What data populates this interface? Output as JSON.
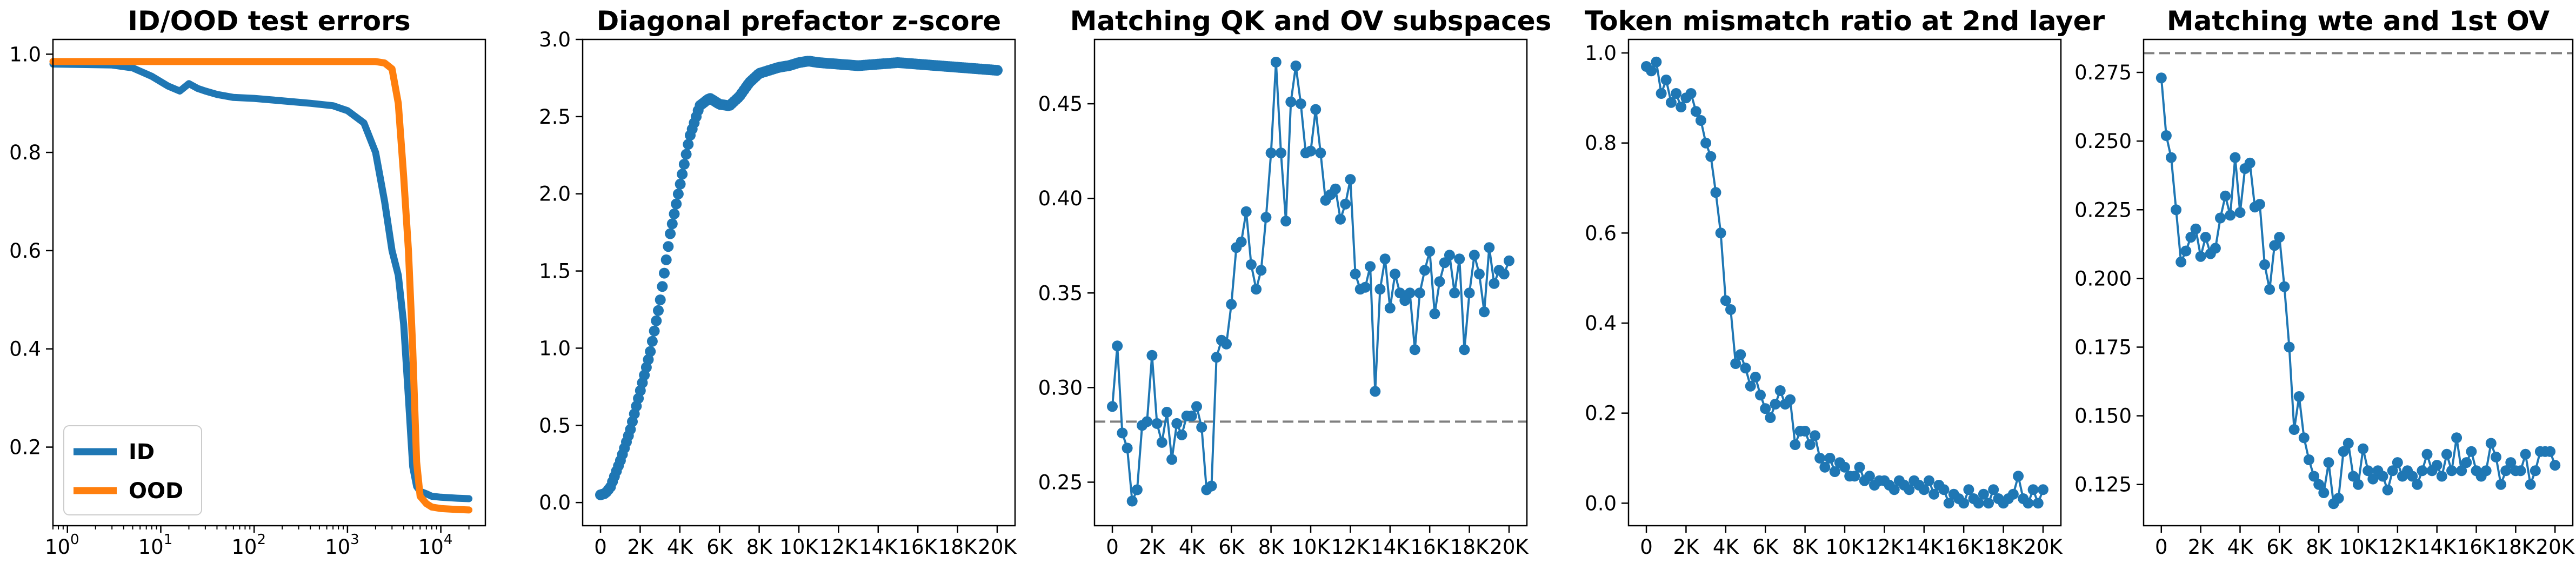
{
  "colors": {
    "blue": "#1f77b4",
    "orange": "#ff7f0e",
    "ref": "#7f7f7f"
  },
  "chart_data": [
    {
      "type": "line",
      "title": "ID/OOD test errors",
      "xscale": "log",
      "xlim": [
        0.7,
        30000
      ],
      "ylim": [
        0.04,
        1.03
      ],
      "xticks": [
        1,
        10,
        100,
        1000,
        10000
      ],
      "xtick_labels": [
        "10",
        "10",
        "10",
        "10",
        "10"
      ],
      "xtick_exponents": [
        "0",
        "1",
        "2",
        "3",
        "4"
      ],
      "yticks": [
        0.2,
        0.4,
        0.6,
        0.8,
        1.0
      ],
      "ytick_labels": [
        "0.2",
        "0.4",
        "0.6",
        "0.8",
        "1.0"
      ],
      "legend": "lower-left",
      "series": [
        {
          "name": "ID",
          "color": "#1f77b4",
          "x": [
            0.7,
            3,
            5,
            8,
            12,
            16,
            20,
            25,
            30,
            40,
            60,
            100,
            200,
            400,
            700,
            1000,
            1500,
            2000,
            2500,
            3000,
            3500,
            4000,
            4500,
            5000,
            5500,
            6000,
            7000,
            8000,
            10000,
            15000,
            20000
          ],
          "y": [
            0.98,
            0.978,
            0.972,
            0.955,
            0.935,
            0.925,
            0.94,
            0.93,
            0.925,
            0.918,
            0.912,
            0.91,
            0.905,
            0.9,
            0.895,
            0.885,
            0.86,
            0.8,
            0.7,
            0.6,
            0.55,
            0.45,
            0.3,
            0.16,
            0.12,
            0.11,
            0.105,
            0.1,
            0.098,
            0.096,
            0.095
          ]
        },
        {
          "name": "OOD",
          "color": "#ff7f0e",
          "x": [
            0.7,
            10,
            100,
            1000,
            2000,
            2500,
            3000,
            3500,
            4000,
            4500,
            5000,
            5500,
            6000,
            7000,
            8000,
            10000,
            15000,
            20000
          ],
          "y": [
            0.985,
            0.985,
            0.985,
            0.985,
            0.985,
            0.982,
            0.97,
            0.9,
            0.75,
            0.6,
            0.4,
            0.17,
            0.1,
            0.085,
            0.078,
            0.075,
            0.073,
            0.072
          ]
        }
      ]
    },
    {
      "type": "scatter",
      "title": "Diagonal prefactor z-score",
      "xlim": [
        -900,
        20900
      ],
      "ylim": [
        -0.15,
        3.0
      ],
      "xticks": [
        0,
        2000,
        4000,
        6000,
        8000,
        10000,
        12000,
        14000,
        16000,
        18000,
        20000
      ],
      "xtick_labels": [
        "0",
        "2K",
        "4K",
        "6K",
        "8K",
        "10K",
        "12K",
        "14K",
        "16K",
        "18K",
        "20K"
      ],
      "yticks": [
        0.0,
        0.5,
        1.0,
        1.5,
        2.0,
        2.5,
        3.0
      ],
      "ytick_labels": [
        "0.0",
        "0.5",
        "1.0",
        "1.5",
        "2.0",
        "2.5",
        "3.0"
      ],
      "series": [
        {
          "color": "#1f77b4",
          "x_anchor": [
            0,
            250,
            500,
            1000,
            1500,
            2000,
            2500,
            3000,
            3500,
            4000,
            4500,
            5000,
            5500,
            6000,
            6500,
            7000,
            7500,
            8000,
            8500,
            9000,
            9500,
            10000,
            10500,
            11000,
            12000,
            13000,
            14000,
            15000,
            16000,
            17000,
            18000,
            19000,
            20000
          ],
          "y_anchor": [
            0.05,
            0.06,
            0.1,
            0.27,
            0.47,
            0.72,
            0.97,
            1.3,
            1.73,
            2.05,
            2.37,
            2.57,
            2.62,
            2.58,
            2.57,
            2.63,
            2.72,
            2.78,
            2.8,
            2.82,
            2.83,
            2.85,
            2.86,
            2.85,
            2.84,
            2.83,
            2.84,
            2.85,
            2.84,
            2.83,
            2.82,
            2.81,
            2.8
          ],
          "n_points": 200
        }
      ]
    },
    {
      "type": "line",
      "title": "Matching QK and OV subspaces",
      "xlim": [
        -900,
        20900
      ],
      "ylim": [
        0.227,
        0.484
      ],
      "xticks": [
        0,
        2000,
        4000,
        6000,
        8000,
        10000,
        12000,
        14000,
        16000,
        18000,
        20000
      ],
      "xtick_labels": [
        "0",
        "2K",
        "4K",
        "6K",
        "8K",
        "10K",
        "12K",
        "14K",
        "16K",
        "18K",
        "20K"
      ],
      "yticks": [
        0.25,
        0.3,
        0.35,
        0.4,
        0.45
      ],
      "ytick_labels": [
        "0.25",
        "0.30",
        "0.35",
        "0.40",
        "0.45"
      ],
      "reference_line": 0.282,
      "series": [
        {
          "color": "#1f77b4",
          "x": [
            0,
            250,
            500,
            750,
            1000,
            1250,
            1500,
            1750,
            2000,
            2250,
            2500,
            2750,
            3000,
            3250,
            3500,
            3750,
            4000,
            4250,
            4500,
            4750,
            5000,
            5250,
            5500,
            5750,
            6000,
            6250,
            6500,
            6750,
            7000,
            7250,
            7500,
            7750,
            8000,
            8250,
            8500,
            8750,
            9000,
            9250,
            9500,
            9750,
            10000,
            10250,
            10500,
            10750,
            11000,
            11250,
            11500,
            11750,
            12000,
            12250,
            12500,
            12750,
            13000,
            13250,
            13500,
            13750,
            14000,
            14250,
            14500,
            14750,
            15000,
            15250,
            15500,
            15750,
            16000,
            16250,
            16500,
            16750,
            17000,
            17250,
            17500,
            17750,
            18000,
            18250,
            18500,
            18750,
            19000,
            19250,
            19500,
            19750,
            20000
          ],
          "y": [
            0.29,
            0.322,
            0.276,
            0.268,
            0.24,
            0.246,
            0.28,
            0.282,
            0.317,
            0.281,
            0.271,
            0.287,
            0.262,
            0.281,
            0.275,
            0.285,
            0.285,
            0.29,
            0.279,
            0.246,
            0.248,
            0.316,
            0.325,
            0.323,
            0.344,
            0.374,
            0.377,
            0.393,
            0.365,
            0.352,
            0.362,
            0.39,
            0.424,
            0.472,
            0.424,
            0.388,
            0.451,
            0.47,
            0.45,
            0.424,
            0.425,
            0.447,
            0.424,
            0.399,
            0.402,
            0.405,
            0.389,
            0.397,
            0.41,
            0.36,
            0.352,
            0.353,
            0.364,
            0.298,
            0.352,
            0.368,
            0.342,
            0.36,
            0.35,
            0.346,
            0.35,
            0.32,
            0.35,
            0.362,
            0.372,
            0.339,
            0.356,
            0.366,
            0.37,
            0.35,
            0.368,
            0.32,
            0.35,
            0.37,
            0.36,
            0.34,
            0.374,
            0.355,
            0.362,
            0.36,
            0.367
          ]
        }
      ]
    },
    {
      "type": "line",
      "title": "Token mismatch ratio at 2nd layer",
      "xlim": [
        -900,
        20900
      ],
      "ylim": [
        -0.05,
        1.03
      ],
      "xticks": [
        0,
        2000,
        4000,
        6000,
        8000,
        10000,
        12000,
        14000,
        16000,
        18000,
        20000
      ],
      "xtick_labels": [
        "0",
        "2K",
        "4K",
        "6K",
        "8K",
        "10K",
        "12K",
        "14K",
        "16K",
        "18K",
        "20K"
      ],
      "yticks": [
        0.0,
        0.2,
        0.4,
        0.6,
        0.8,
        1.0
      ],
      "ytick_labels": [
        "0.0",
        "0.2",
        "0.4",
        "0.6",
        "0.8",
        "1.0"
      ],
      "series": [
        {
          "color": "#1f77b4",
          "x": [
            0,
            250,
            500,
            750,
            1000,
            1250,
            1500,
            1750,
            2000,
            2250,
            2500,
            2750,
            3000,
            3250,
            3500,
            3750,
            4000,
            4250,
            4500,
            4750,
            5000,
            5250,
            5500,
            5750,
            6000,
            6250,
            6500,
            6750,
            7000,
            7250,
            7500,
            7750,
            8000,
            8250,
            8500,
            8750,
            9000,
            9250,
            9500,
            9750,
            10000,
            10250,
            10500,
            10750,
            11000,
            11250,
            11500,
            11750,
            12000,
            12250,
            12500,
            12750,
            13000,
            13250,
            13500,
            13750,
            14000,
            14250,
            14500,
            14750,
            15000,
            15250,
            15500,
            15750,
            16000,
            16250,
            16500,
            16750,
            17000,
            17250,
            17500,
            17750,
            18000,
            18250,
            18500,
            18750,
            19000,
            19250,
            19500,
            19750,
            20000
          ],
          "y": [
            0.97,
            0.96,
            0.98,
            0.91,
            0.94,
            0.89,
            0.91,
            0.88,
            0.9,
            0.91,
            0.87,
            0.85,
            0.8,
            0.77,
            0.69,
            0.6,
            0.45,
            0.43,
            0.31,
            0.33,
            0.3,
            0.26,
            0.28,
            0.24,
            0.21,
            0.19,
            0.22,
            0.25,
            0.22,
            0.23,
            0.13,
            0.16,
            0.16,
            0.13,
            0.15,
            0.1,
            0.08,
            0.1,
            0.07,
            0.09,
            0.08,
            0.06,
            0.06,
            0.08,
            0.05,
            0.06,
            0.04,
            0.05,
            0.05,
            0.04,
            0.03,
            0.05,
            0.04,
            0.03,
            0.05,
            0.04,
            0.03,
            0.05,
            0.02,
            0.04,
            0.03,
            0.0,
            0.02,
            0.01,
            0.0,
            0.03,
            0.01,
            0.0,
            0.02,
            0.0,
            0.03,
            0.01,
            0.0,
            0.01,
            0.02,
            0.06,
            0.01,
            0.0,
            0.03,
            0.0,
            0.03
          ]
        }
      ]
    },
    {
      "type": "line",
      "title": "Matching wte and 1st OV",
      "xlim": [
        -900,
        20900
      ],
      "ylim": [
        0.11,
        0.287
      ],
      "xticks": [
        0,
        2000,
        4000,
        6000,
        8000,
        10000,
        12000,
        14000,
        16000,
        18000,
        20000
      ],
      "xtick_labels": [
        "0",
        "2K",
        "4K",
        "6K",
        "8K",
        "10K",
        "12K",
        "14K",
        "16K",
        "18K",
        "20K"
      ],
      "yticks": [
        0.125,
        0.15,
        0.175,
        0.2,
        0.225,
        0.25,
        0.275
      ],
      "ytick_labels": [
        "0.125",
        "0.150",
        "0.175",
        "0.200",
        "0.225",
        "0.250",
        "0.275"
      ],
      "reference_line": 0.282,
      "series": [
        {
          "color": "#1f77b4",
          "x": [
            0,
            250,
            500,
            750,
            1000,
            1250,
            1500,
            1750,
            2000,
            2250,
            2500,
            2750,
            3000,
            3250,
            3500,
            3750,
            4000,
            4250,
            4500,
            4750,
            5000,
            5250,
            5500,
            5750,
            6000,
            6250,
            6500,
            6750,
            7000,
            7250,
            7500,
            7750,
            8000,
            8250,
            8500,
            8750,
            9000,
            9250,
            9500,
            9750,
            10000,
            10250,
            10500,
            10750,
            11000,
            11250,
            11500,
            11750,
            12000,
            12250,
            12500,
            12750,
            13000,
            13250,
            13500,
            13750,
            14000,
            14250,
            14500,
            14750,
            15000,
            15250,
            15500,
            15750,
            16000,
            16250,
            16500,
            16750,
            17000,
            17250,
            17500,
            17750,
            18000,
            18250,
            18500,
            18750,
            19000,
            19250,
            19500,
            19750,
            20000
          ],
          "y": [
            0.273,
            0.252,
            0.244,
            0.225,
            0.206,
            0.21,
            0.215,
            0.218,
            0.208,
            0.215,
            0.209,
            0.211,
            0.222,
            0.23,
            0.223,
            0.244,
            0.224,
            0.24,
            0.242,
            0.226,
            0.227,
            0.205,
            0.196,
            0.212,
            0.215,
            0.197,
            0.175,
            0.145,
            0.157,
            0.142,
            0.134,
            0.128,
            0.125,
            0.122,
            0.133,
            0.118,
            0.12,
            0.137,
            0.14,
            0.128,
            0.125,
            0.138,
            0.13,
            0.127,
            0.13,
            0.128,
            0.123,
            0.13,
            0.133,
            0.128,
            0.13,
            0.128,
            0.125,
            0.13,
            0.136,
            0.13,
            0.132,
            0.128,
            0.136,
            0.13,
            0.142,
            0.13,
            0.133,
            0.137,
            0.13,
            0.128,
            0.13,
            0.14,
            0.135,
            0.125,
            0.13,
            0.133,
            0.13,
            0.13,
            0.136,
            0.125,
            0.13,
            0.137,
            0.137,
            0.137,
            0.132
          ]
        }
      ]
    }
  ]
}
